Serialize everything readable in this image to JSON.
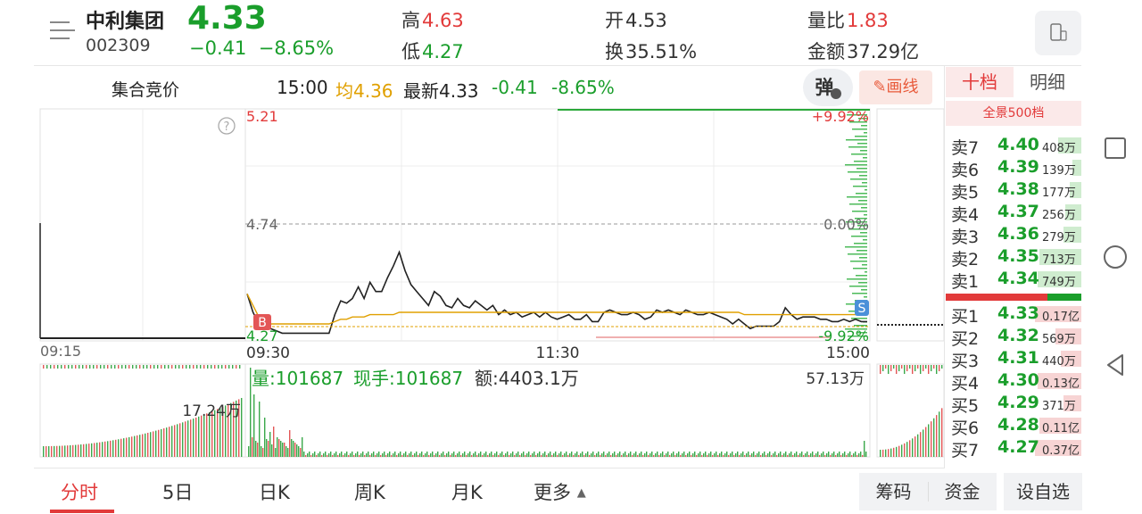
{
  "header": {
    "name": "中利集团",
    "code": "002309",
    "price": "4.33",
    "change": "−0.41",
    "change_pct": "−8.65%",
    "high_label": "高",
    "high": "4.63",
    "low_label": "低",
    "low": "4.27",
    "open_label": "开",
    "open": "4.53",
    "turnover_label": "换",
    "turnover": "35.51%",
    "vol_ratio_label": "量比",
    "vol_ratio": "1.83",
    "amount_label": "金额",
    "amount": "37.29亿"
  },
  "subbar": {
    "auction": "集合竞价",
    "time": "15:00",
    "avg_label": "均",
    "avg": "4.36",
    "latest_label": "最新",
    "latest": "4.33",
    "change": "-0.41",
    "change_pct": "-8.65%",
    "dan": "弹",
    "draw": "画线"
  },
  "chart": {
    "price_top": "5.21",
    "pct_top": "+9.92%",
    "price_mid": "4.74",
    "pct_mid": "0.00%",
    "price_bottom": "4.27",
    "pct_bottom": "-9.92%",
    "t_auction": "09:15",
    "t_open": "09:30",
    "t_mid": "11:30",
    "t_close": "15:00",
    "marker_b": "B",
    "marker_s": "S",
    "vol_label": "量:101687",
    "cur_hand": "现手:101687",
    "amount": "额:4403.1万",
    "vol_max": "57.13万",
    "auction_vol": "17.24万"
  },
  "chart_data": {
    "type": "line",
    "title": "",
    "ylim": [
      4.27,
      5.21
    ],
    "reference_price": 4.74,
    "series": [
      {
        "values": [
          4.45,
          4.37,
          4.32,
          4.31,
          4.3,
          4.29,
          4.28,
          4.28,
          4.28,
          4.28,
          4.28,
          4.28,
          4.28,
          4.28,
          4.28,
          4.36,
          4.42,
          4.41,
          4.43,
          4.48,
          4.43,
          4.5,
          4.46,
          4.46,
          4.52,
          4.57,
          4.63,
          4.55,
          4.49,
          4.46,
          4.43,
          4.4,
          4.46,
          4.44,
          4.4,
          4.39,
          4.43,
          4.4,
          4.39,
          4.42,
          4.4,
          4.38,
          4.4,
          4.36,
          4.38,
          4.36,
          4.37,
          4.35,
          4.36,
          4.37,
          4.35,
          4.37,
          4.35,
          4.34,
          4.35,
          4.36,
          4.34,
          4.34,
          4.36,
          4.33,
          4.33,
          4.37,
          4.38,
          4.37,
          4.36,
          4.36,
          4.37,
          4.36,
          4.34,
          4.35,
          4.38,
          4.37,
          4.38,
          4.37,
          4.36,
          4.38,
          4.37,
          4.36,
          4.36,
          4.37,
          4.36,
          4.35,
          4.34,
          4.32,
          4.34,
          4.32,
          4.3,
          4.31,
          4.31,
          4.31,
          4.31,
          4.33,
          4.39,
          4.36,
          4.34,
          4.35,
          4.35,
          4.35,
          4.34,
          4.34,
          4.33,
          4.33,
          4.34,
          4.33,
          4.34,
          4.33,
          4.33
        ]
      },
      {
        "values": [
          4.45,
          4.4,
          4.35,
          4.33,
          4.32,
          4.32,
          4.32,
          4.32,
          4.32,
          4.32,
          4.32,
          4.32,
          4.32,
          4.32,
          4.32,
          4.33,
          4.34,
          4.34,
          4.35,
          4.35,
          4.35,
          4.36,
          4.36,
          4.36,
          4.36,
          4.36,
          4.37,
          4.37,
          4.37,
          4.37,
          4.37,
          4.37,
          4.37,
          4.37,
          4.37,
          4.37,
          4.37,
          4.37,
          4.37,
          4.37,
          4.37,
          4.37,
          4.37,
          4.37,
          4.37,
          4.37,
          4.37,
          4.37,
          4.37,
          4.37,
          4.37,
          4.37,
          4.37,
          4.37,
          4.37,
          4.37,
          4.37,
          4.37,
          4.37,
          4.37,
          4.37,
          4.37,
          4.37,
          4.37,
          4.37,
          4.37,
          4.37,
          4.37,
          4.37,
          4.37,
          4.37,
          4.37,
          4.37,
          4.37,
          4.37,
          4.37,
          4.37,
          4.37,
          4.37,
          4.37,
          4.37,
          4.37,
          4.37,
          4.37,
          4.37,
          4.36,
          4.36,
          4.36,
          4.36,
          4.36,
          4.36,
          4.36,
          4.36,
          4.36,
          4.36,
          4.36,
          4.36,
          4.36,
          4.36,
          4.36,
          4.36,
          4.36,
          4.36,
          4.36,
          4.36,
          4.36,
          4.36
        ]
      }
    ]
  },
  "orderbook": {
    "tab_active": "十档",
    "tab_other": "明细",
    "full": "全景500档",
    "sell": [
      {
        "label": "卖7",
        "price": "4.40",
        "vol": "408万",
        "fill": 0.5
      },
      {
        "label": "卖6",
        "price": "4.39",
        "vol": "139万",
        "fill": 0.2
      },
      {
        "label": "卖5",
        "price": "4.38",
        "vol": "177万",
        "fill": 0.25
      },
      {
        "label": "卖4",
        "price": "4.37",
        "vol": "256万",
        "fill": 0.35
      },
      {
        "label": "卖3",
        "price": "4.36",
        "vol": "279万",
        "fill": 0.38
      },
      {
        "label": "卖2",
        "price": "4.35",
        "vol": "713万",
        "fill": 0.9
      },
      {
        "label": "卖1",
        "price": "4.34",
        "vol": "749万",
        "fill": 0.95
      }
    ],
    "buy": [
      {
        "label": "买1",
        "price": "4.33",
        "vol": "0.17亿",
        "fill": 1.0
      },
      {
        "label": "买2",
        "price": "4.32",
        "vol": "569万",
        "fill": 0.55
      },
      {
        "label": "买3",
        "price": "4.31",
        "vol": "440万",
        "fill": 0.45
      },
      {
        "label": "买4",
        "price": "4.30",
        "vol": "0.13亿",
        "fill": 0.95
      },
      {
        "label": "买5",
        "price": "4.29",
        "vol": "371万",
        "fill": 0.38
      },
      {
        "label": "买6",
        "price": "4.28",
        "vol": "0.11亿",
        "fill": 0.9
      },
      {
        "label": "买7",
        "price": "4.27",
        "vol": "0.37亿",
        "fill": 1.0
      }
    ],
    "buy_split": 0.75
  },
  "tabs": {
    "fenshi": "分时",
    "d5": "5日",
    "dk": "日K",
    "wk": "周K",
    "mk": "月K",
    "more": "更多"
  },
  "actions": {
    "chips": "筹码",
    "funds": "资金",
    "watch": "设自选"
  },
  "colors": {
    "up": "#e23a3a",
    "down": "#1a9e2b",
    "avg": "#e0a000"
  }
}
